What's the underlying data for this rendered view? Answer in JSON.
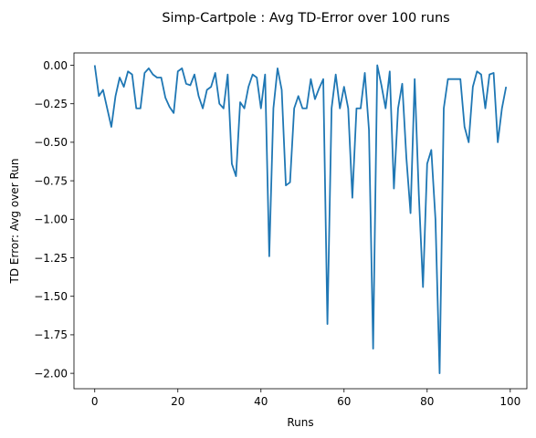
{
  "chart_data": {
    "type": "line",
    "title": "Simp-Cartpole : Avg TD-Error over 100 runs",
    "xlabel": "Runs",
    "ylabel": "TD Error: Avg over Run",
    "xlim": [
      -5,
      104
    ],
    "ylim": [
      -2.1,
      0.08
    ],
    "xticks": [
      0,
      20,
      40,
      60,
      80,
      100
    ],
    "xtick_labels": [
      "0",
      "20",
      "40",
      "60",
      "80",
      "100"
    ],
    "yticks": [
      0.0,
      -0.25,
      -0.5,
      -0.75,
      -1.0,
      -1.25,
      -1.5,
      -1.75,
      -2.0
    ],
    "ytick_labels": [
      "0.00",
      "−0.25",
      "−0.50",
      "−0.75",
      "−1.00",
      "−1.25",
      "−1.50",
      "−1.75",
      "−2.00"
    ],
    "grid": false,
    "color": "#1f77b4",
    "series": [
      {
        "x": [
          0,
          1,
          2,
          3,
          4,
          5,
          6,
          7,
          8,
          9,
          10,
          11,
          12,
          13,
          14,
          15,
          16,
          17,
          18,
          19,
          20,
          21,
          22,
          23,
          24,
          25,
          26,
          27,
          28,
          29,
          30,
          31,
          32,
          33,
          34,
          35,
          36,
          37,
          38,
          39,
          40,
          41,
          42,
          43,
          44,
          45,
          46,
          47,
          48,
          49,
          50,
          51,
          52,
          53,
          54,
          55,
          56,
          57,
          58,
          59,
          60,
          61,
          62,
          63,
          64,
          65,
          66,
          67,
          68,
          69,
          70,
          71,
          72,
          73,
          74,
          75,
          76,
          77,
          78,
          79,
          80,
          81,
          82,
          83,
          84,
          85,
          86,
          87,
          88,
          89,
          90,
          91,
          92,
          93,
          94,
          95,
          96,
          97,
          98,
          99
        ],
        "y": [
          0.0,
          -0.2,
          -0.16,
          -0.28,
          -0.4,
          -0.2,
          -0.08,
          -0.14,
          -0.04,
          -0.06,
          -0.28,
          -0.28,
          -0.05,
          -0.02,
          -0.06,
          -0.08,
          -0.08,
          -0.21,
          -0.27,
          -0.31,
          -0.04,
          -0.02,
          -0.12,
          -0.13,
          -0.06,
          -0.2,
          -0.28,
          -0.16,
          -0.14,
          -0.05,
          -0.25,
          -0.28,
          -0.06,
          -0.64,
          -0.72,
          -0.24,
          -0.28,
          -0.14,
          -0.06,
          -0.08,
          -0.28,
          -0.06,
          -1.24,
          -0.28,
          -0.02,
          -0.16,
          -0.78,
          -0.76,
          -0.28,
          -0.2,
          -0.28,
          -0.28,
          -0.09,
          -0.22,
          -0.15,
          -0.09,
          -1.68,
          -0.28,
          -0.06,
          -0.28,
          -0.14,
          -0.28,
          -0.86,
          -0.28,
          -0.28,
          -0.05,
          -0.42,
          -1.84,
          0.0,
          -0.13,
          -0.28,
          -0.04,
          -0.8,
          -0.28,
          -0.12,
          -0.6,
          -0.96,
          -0.09,
          -0.84,
          -1.44,
          -0.64,
          -0.55,
          -1.0,
          -2.0,
          -0.28,
          -0.09,
          -0.09,
          -0.09,
          -0.09,
          -0.4,
          -0.5,
          -0.14,
          -0.04,
          -0.06,
          -0.28,
          -0.06,
          -0.05,
          -0.5,
          -0.28,
          -0.14
        ]
      }
    ]
  }
}
